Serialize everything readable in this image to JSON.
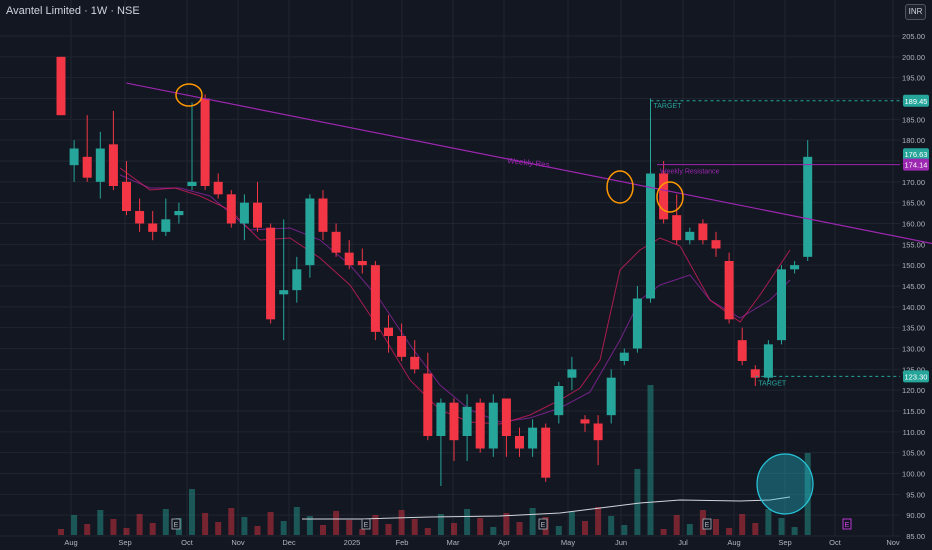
{
  "header": {
    "title": "Avantel Limited · 1W · NSE",
    "currency_button": "INR"
  },
  "colors": {
    "up": "#26a69a",
    "down": "#f23645",
    "trendline": "#9c27b0",
    "background": "#131722"
  },
  "chart_data": {
    "type": "candlestick",
    "symbol": "Avantel Limited",
    "interval": "1W",
    "exchange": "NSE",
    "ylim": [
      85,
      210
    ],
    "y_ticks": [
      205,
      200,
      195,
      190,
      185,
      180,
      175,
      170,
      165,
      160,
      155,
      150,
      145,
      140,
      135,
      130,
      125,
      120,
      115,
      110,
      105,
      100,
      95,
      90,
      85
    ],
    "x_tick_labels": [
      "Aug",
      "Sep",
      "Oct",
      "Nov",
      "Dec",
      "2025",
      "Feb",
      "Mar",
      "Apr",
      "May",
      "Jun",
      "Jul",
      "Aug",
      "Sep",
      "Oct",
      "Nov"
    ],
    "candles": [
      {
        "o": 200,
        "h": 200,
        "l": 186,
        "c": 186
      },
      {
        "o": 174,
        "h": 180,
        "l": 170,
        "c": 178
      },
      {
        "o": 176,
        "h": 186,
        "l": 170,
        "c": 171
      },
      {
        "o": 170,
        "h": 182,
        "l": 166,
        "c": 178
      },
      {
        "o": 179,
        "h": 187,
        "l": 168,
        "c": 169
      },
      {
        "o": 170,
        "h": 175,
        "l": 162,
        "c": 163
      },
      {
        "o": 163,
        "h": 166,
        "l": 158,
        "c": 160
      },
      {
        "o": 160,
        "h": 163,
        "l": 156,
        "c": 158
      },
      {
        "o": 158,
        "h": 166,
        "l": 157,
        "c": 161
      },
      {
        "o": 162,
        "h": 165,
        "l": 160,
        "c": 163
      },
      {
        "o": 169,
        "h": 189,
        "l": 168,
        "c": 170
      },
      {
        "o": 190,
        "h": 191,
        "l": 168,
        "c": 169
      },
      {
        "o": 170,
        "h": 172,
        "l": 166,
        "c": 167
      },
      {
        "o": 167,
        "h": 168,
        "l": 159,
        "c": 160
      },
      {
        "o": 160,
        "h": 167,
        "l": 156,
        "c": 165
      },
      {
        "o": 165,
        "h": 170,
        "l": 158,
        "c": 159
      },
      {
        "o": 159,
        "h": 160,
        "l": 136,
        "c": 137
      },
      {
        "o": 143,
        "h": 161,
        "l": 132,
        "c": 144
      },
      {
        "o": 144,
        "h": 152,
        "l": 141,
        "c": 149
      },
      {
        "o": 150,
        "h": 167,
        "l": 147,
        "c": 166
      },
      {
        "o": 166,
        "h": 168,
        "l": 156,
        "c": 158
      },
      {
        "o": 158,
        "h": 160,
        "l": 152,
        "c": 153
      },
      {
        "o": 153,
        "h": 156,
        "l": 149,
        "c": 150
      },
      {
        "o": 151,
        "h": 154,
        "l": 148,
        "c": 150
      },
      {
        "o": 150,
        "h": 151,
        "l": 132,
        "c": 134
      },
      {
        "o": 135,
        "h": 138,
        "l": 129,
        "c": 133
      },
      {
        "o": 133,
        "h": 136,
        "l": 127,
        "c": 128
      },
      {
        "o": 128,
        "h": 132,
        "l": 124,
        "c": 125
      },
      {
        "o": 124,
        "h": 129,
        "l": 108,
        "c": 109
      },
      {
        "o": 109,
        "h": 118,
        "l": 97,
        "c": 117
      },
      {
        "o": 117,
        "h": 118,
        "l": 103,
        "c": 108
      },
      {
        "o": 109,
        "h": 119,
        "l": 103,
        "c": 116
      },
      {
        "o": 117,
        "h": 118,
        "l": 105,
        "c": 106
      },
      {
        "o": 106,
        "h": 119,
        "l": 104,
        "c": 117
      },
      {
        "o": 118,
        "h": 118,
        "l": 104,
        "c": 109
      },
      {
        "o": 109,
        "h": 111,
        "l": 104,
        "c": 106
      },
      {
        "o": 106,
        "h": 113,
        "l": 104,
        "c": 111
      },
      {
        "o": 111,
        "h": 112,
        "l": 98,
        "c": 99
      },
      {
        "o": 114,
        "h": 122,
        "l": 112,
        "c": 121
      },
      {
        "o": 123,
        "h": 128,
        "l": 120,
        "c": 125
      },
      {
        "o": 113,
        "h": 114,
        "l": 110,
        "c": 112
      },
      {
        "o": 112,
        "h": 114,
        "l": 102,
        "c": 108
      },
      {
        "o": 114,
        "h": 125,
        "l": 112,
        "c": 123
      },
      {
        "o": 127,
        "h": 130,
        "l": 126,
        "c": 129
      },
      {
        "o": 130,
        "h": 145,
        "l": 129,
        "c": 142
      },
      {
        "o": 142,
        "h": 190,
        "l": 141,
        "c": 172
      },
      {
        "o": 172,
        "h": 175,
        "l": 160,
        "c": 161
      },
      {
        "o": 162,
        "h": 167,
        "l": 155,
        "c": 156
      },
      {
        "o": 156,
        "h": 159,
        "l": 155,
        "c": 158
      },
      {
        "o": 160,
        "h": 161,
        "l": 155,
        "c": 156
      },
      {
        "o": 156,
        "h": 158,
        "l": 152,
        "c": 154
      },
      {
        "o": 151,
        "h": 153,
        "l": 136,
        "c": 137
      },
      {
        "o": 132,
        "h": 135,
        "l": 126,
        "c": 127
      },
      {
        "o": 125,
        "h": 126,
        "l": 121,
        "c": 123
      },
      {
        "o": 123,
        "h": 132,
        "l": 122,
        "c": 131
      },
      {
        "o": 132,
        "h": 150,
        "l": 131,
        "c": 149
      },
      {
        "o": 149,
        "h": 151,
        "l": 148,
        "c": 150
      },
      {
        "o": 152,
        "h": 180,
        "l": 151,
        "c": 176
      }
    ],
    "price_labels": [
      {
        "value": 189.45,
        "text": "189.45",
        "color": "#26a69a"
      },
      {
        "value": 176.63,
        "text": "176.63",
        "color": "#26a69a"
      },
      {
        "value": 174.14,
        "text": "174.14",
        "color": "#9c27b0"
      },
      {
        "value": 123.3,
        "text": "123.30",
        "color": "#26a69a"
      }
    ],
    "annotations": [
      {
        "text": "Weekly Res",
        "type": "trendline",
        "from_index": 5,
        "from_price": 193.7,
        "to_index": 66.5,
        "to_price": 155.2
      },
      {
        "text": "Weekly Resistance",
        "type": "hline",
        "price": 174.14,
        "from_index": 45.5
      },
      {
        "text": "TARGET",
        "type": "target",
        "price": 189.45,
        "from_index": 45
      },
      {
        "text": "TARGET",
        "type": "target",
        "price": 123.3,
        "from_index": 53
      }
    ],
    "earnings_markers": [
      "E",
      "E",
      "E",
      "E"
    ],
    "dividend_marker": "E"
  }
}
